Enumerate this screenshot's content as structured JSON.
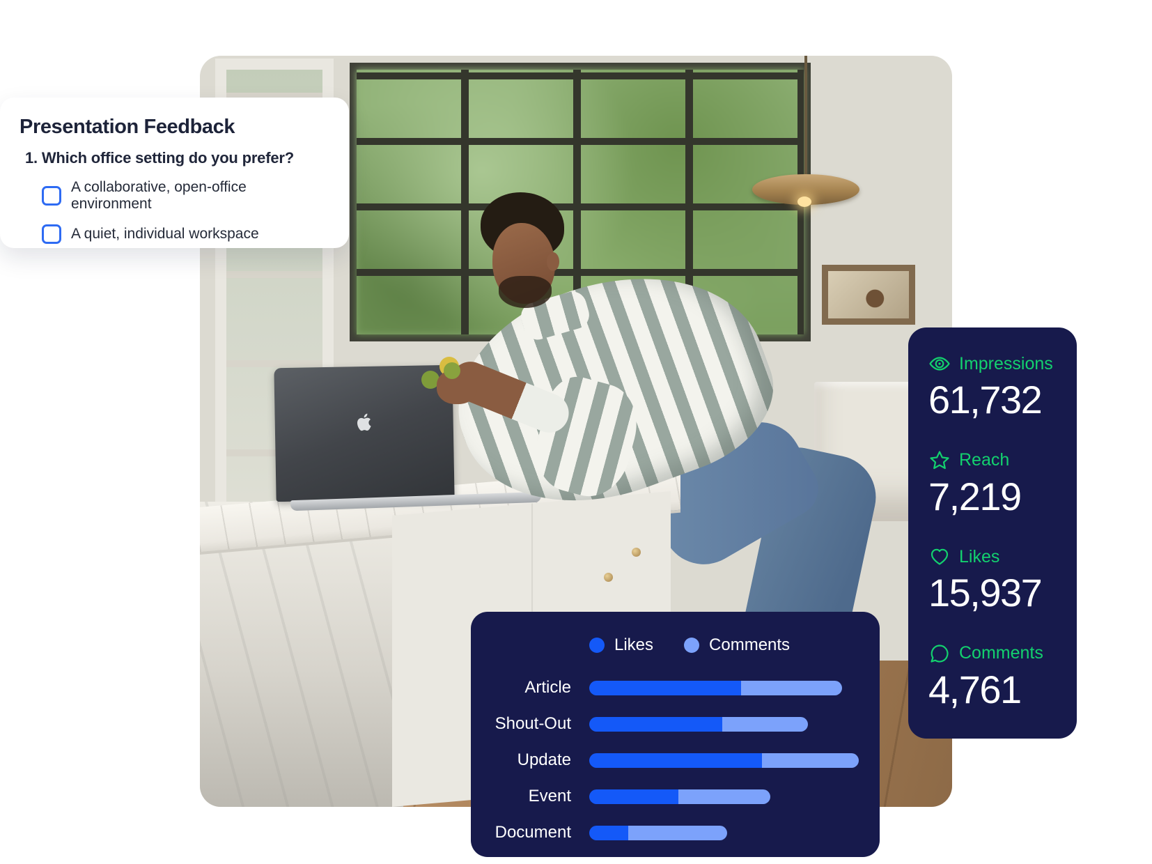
{
  "page": {
    "background": "#ffffff"
  },
  "feedback_card": {
    "title": "Presentation Feedback",
    "question": "1. Which office setting do you prefer?",
    "options": [
      {
        "label": "A collaborative, open-office environment",
        "checked": false
      },
      {
        "label": "A quiet, individual workspace",
        "checked": false
      }
    ],
    "checkbox_color": "#2e6bf3",
    "background": "#ffffff",
    "text_color": "#1d2339"
  },
  "stats_card": {
    "background": "#171a4c",
    "accent_color": "#13d16e",
    "value_color": "#ffffff",
    "items": [
      {
        "icon": "eye-icon",
        "label": "Impressions",
        "value": "61,732"
      },
      {
        "icon": "star-icon",
        "label": "Reach",
        "value": "7,219"
      },
      {
        "icon": "heart-icon",
        "label": "Likes",
        "value": "15,937"
      },
      {
        "icon": "comment-icon",
        "label": "Comments",
        "value": "4,761"
      }
    ]
  },
  "chart_card": {
    "background": "#171a4c",
    "label_color": "#ffffff"
  },
  "chart_data": {
    "type": "bar",
    "orientation": "horizontal",
    "stacked": true,
    "title": "",
    "categories": [
      "Article",
      "Shout-Out",
      "Update",
      "Event",
      "Document"
    ],
    "series": [
      {
        "name": "Likes",
        "color": "#1459f8",
        "values": [
          218,
          191,
          248,
          128,
          56
        ]
      },
      {
        "name": "Comments",
        "color": "#7ca2fb",
        "values": [
          145,
          123,
          139,
          132,
          142
        ]
      }
    ],
    "value_unit": "relative-bar-length-px",
    "scale_max": 387,
    "legend_position": "top",
    "axes_visible": false,
    "gridlines": false
  }
}
